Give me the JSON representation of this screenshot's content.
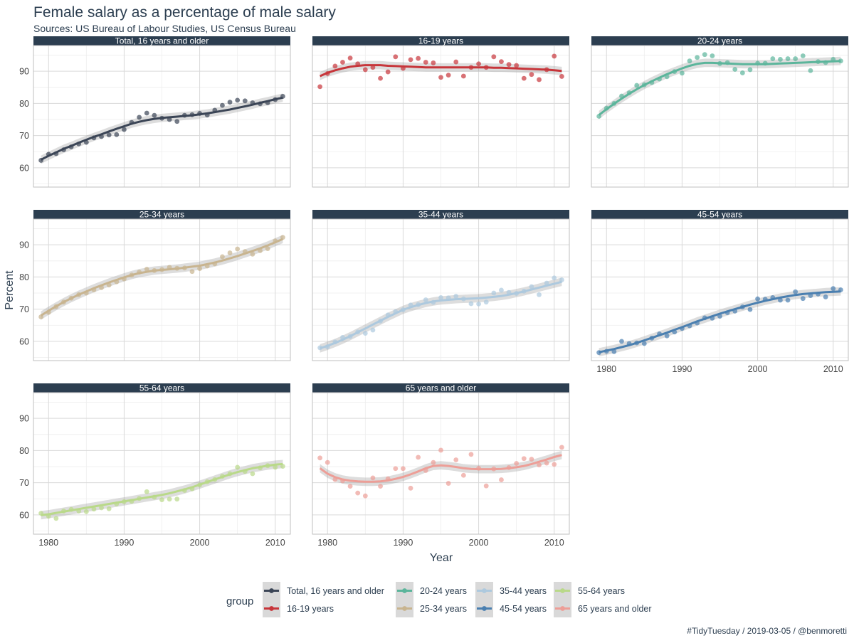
{
  "title": "Female salary as a percentage of male salary",
  "subtitle": "Sources: US Bureau of Labour Studies, US Census Bureau",
  "caption": "#TidyTuesday / 2019-03-05 / @benmoretti",
  "chart_data": {
    "type": "scatter",
    "facet": "group",
    "xlabel": "Year",
    "ylabel": "Percent",
    "xlim": [
      1978,
      2012
    ],
    "ylim": [
      54,
      98
    ],
    "x_ticks": [
      1980,
      1990,
      2000,
      2010
    ],
    "y_ticks": [
      60,
      70,
      80,
      90
    ],
    "grid": true,
    "smooth": "loess trend line with confidence band",
    "legend": {
      "title": "group",
      "position": "bottom",
      "entries": [
        "Total, 16 years and older",
        "16-19 years",
        "20-24 years",
        "25-34 years",
        "35-44 years",
        "45-54 years",
        "55-64 years",
        "65 years and older"
      ]
    },
    "x": [
      1979,
      1980,
      1981,
      1982,
      1983,
      1984,
      1985,
      1986,
      1987,
      1988,
      1989,
      1990,
      1991,
      1992,
      1993,
      1994,
      1995,
      1996,
      1997,
      1998,
      1999,
      2000,
      2001,
      2002,
      2003,
      2004,
      2005,
      2006,
      2007,
      2008,
      2009,
      2010,
      2011
    ],
    "series": [
      {
        "name": "Total, 16 years and older",
        "color": "#3b4556",
        "values": [
          62.3,
          64.2,
          64.4,
          65.6,
          66.5,
          67.4,
          67.9,
          69.3,
          69.7,
          70.2,
          70.3,
          71.9,
          74.1,
          75.7,
          77.0,
          76.3,
          75.4,
          75.0,
          74.4,
          76.3,
          76.5,
          76.9,
          76.4,
          77.9,
          79.4,
          80.4,
          81.0,
          80.8,
          80.2,
          79.9,
          80.2,
          81.2,
          82.2
        ],
        "trend": [
          62.5,
          63.7,
          64.8,
          65.9,
          66.8,
          67.8,
          68.7,
          69.6,
          70.4,
          71.3,
          72.1,
          72.9,
          73.7,
          74.3,
          74.8,
          75.2,
          75.5,
          75.7,
          75.9,
          76.1,
          76.3,
          76.6,
          76.9,
          77.3,
          77.7,
          78.1,
          78.6,
          79.1,
          79.6,
          80.2,
          80.7,
          81.3,
          81.8
        ]
      },
      {
        "name": "16-19 years",
        "color": "#c7353a",
        "values": [
          85.2,
          89.3,
          91.6,
          92.8,
          94.1,
          92.3,
          90.5,
          91.2,
          87.8,
          89.8,
          94.5,
          90.9,
          93.6,
          94.0,
          92.8,
          92.6,
          88.1,
          88.8,
          92.9,
          88.5,
          91.2,
          92.3,
          91.2,
          94.5,
          93.0,
          92.1,
          91.8,
          87.8,
          89.0,
          87.4,
          90.5,
          94.7,
          88.4
        ],
        "trend": [
          88.5,
          89.5,
          90.3,
          90.9,
          91.4,
          91.7,
          91.9,
          91.9,
          91.9,
          91.7,
          91.6,
          91.5,
          91.4,
          91.3,
          91.2,
          91.2,
          91.2,
          91.2,
          91.2,
          91.2,
          91.2,
          91.2,
          91.2,
          91.1,
          91.1,
          91.0,
          90.9,
          90.8,
          90.7,
          90.6,
          90.5,
          90.3,
          90.1
        ]
      },
      {
        "name": "20-24 years",
        "color": "#5bb59b",
        "values": [
          76.0,
          78.5,
          80.0,
          82.3,
          83.3,
          85.6,
          85.8,
          86.5,
          87.6,
          88.3,
          89.9,
          89.4,
          93.2,
          94.3,
          95.2,
          94.8,
          92.4,
          92.7,
          90.6,
          89.5,
          90.5,
          92.5,
          92.5,
          93.9,
          93.7,
          93.9,
          93.9,
          94.8,
          90.2,
          93.0,
          92.7,
          93.7,
          93.2
        ],
        "trend": [
          76.4,
          78.2,
          79.9,
          81.5,
          83.0,
          84.4,
          85.7,
          86.9,
          88.0,
          89.1,
          90.0,
          90.9,
          91.7,
          92.3,
          92.6,
          92.6,
          92.5,
          92.4,
          92.3,
          92.2,
          92.2,
          92.2,
          92.2,
          92.3,
          92.4,
          92.5,
          92.6,
          92.7,
          92.8,
          92.9,
          93.0,
          93.1,
          93.2
        ]
      },
      {
        "name": "25-34 years",
        "color": "#c8b48f",
        "values": [
          67.6,
          69.0,
          70.8,
          72.2,
          73.4,
          74.5,
          75.0,
          76.0,
          76.7,
          77.5,
          78.5,
          79.4,
          80.6,
          81.5,
          82.4,
          82.0,
          82.3,
          83.0,
          82.7,
          82.8,
          81.7,
          82.6,
          83.4,
          84.1,
          86.3,
          87.5,
          88.7,
          87.9,
          87.1,
          88.2,
          88.8,
          91.2,
          92.3
        ],
        "trend": [
          68.0,
          69.5,
          70.9,
          72.2,
          73.4,
          74.5,
          75.5,
          76.5,
          77.4,
          78.3,
          79.1,
          79.9,
          80.6,
          81.2,
          81.6,
          82.0,
          82.2,
          82.4,
          82.6,
          82.9,
          83.2,
          83.5,
          84.0,
          84.5,
          85.1,
          85.8,
          86.5,
          87.3,
          88.1,
          88.9,
          89.8,
          90.8,
          91.8
        ]
      },
      {
        "name": "35-44 years",
        "color": "#adc9de",
        "values": [
          58.0,
          58.3,
          59.8,
          61.2,
          61.5,
          62.9,
          62.5,
          63.5,
          66.3,
          68.2,
          69.2,
          69.8,
          71.3,
          71.4,
          72.9,
          72.1,
          73.6,
          73.5,
          74.0,
          73.2,
          71.7,
          71.6,
          72.2,
          75.0,
          75.9,
          75.2,
          74.9,
          75.6,
          77.0,
          74.5,
          78.1,
          79.7,
          79.1
        ],
        "trend": [
          57.8,
          58.6,
          59.5,
          60.5,
          61.6,
          62.8,
          64.0,
          65.2,
          66.4,
          67.6,
          68.7,
          69.8,
          70.6,
          71.3,
          71.9,
          72.4,
          72.7,
          72.9,
          73.1,
          73.2,
          73.3,
          73.4,
          73.6,
          73.8,
          74.1,
          74.5,
          75.0,
          75.5,
          76.1,
          76.7,
          77.3,
          77.9,
          78.5
        ]
      },
      {
        "name": "45-54 years",
        "color": "#4a7fb0",
        "values": [
          56.5,
          56.9,
          56.8,
          60.0,
          59.3,
          59.5,
          59.3,
          61.0,
          62.3,
          61.7,
          62.9,
          64.0,
          64.8,
          65.7,
          67.3,
          67.2,
          67.8,
          68.9,
          69.4,
          70.7,
          69.9,
          73.2,
          73.1,
          73.6,
          72.8,
          72.8,
          75.4,
          73.3,
          74.2,
          74.7,
          73.8,
          76.4,
          76.0
        ],
        "trend": [
          56.6,
          57.1,
          57.6,
          58.2,
          58.8,
          59.5,
          60.3,
          61.1,
          61.9,
          62.7,
          63.6,
          64.4,
          65.3,
          66.2,
          67.0,
          67.8,
          68.6,
          69.3,
          70.0,
          70.7,
          71.4,
          72.0,
          72.6,
          73.1,
          73.6,
          74.0,
          74.4,
          74.7,
          74.9,
          75.1,
          75.3,
          75.4,
          75.5
        ]
      },
      {
        "name": "55-64 years",
        "color": "#b9d989",
        "values": [
          60.5,
          59.6,
          58.9,
          61.2,
          61.7,
          61.2,
          61.0,
          61.8,
          62.2,
          61.9,
          63.4,
          64.1,
          64.2,
          65.1,
          67.2,
          65.5,
          64.7,
          64.9,
          64.9,
          67.6,
          68.1,
          69.3,
          70.3,
          71.0,
          72.0,
          72.8,
          74.8,
          73.5,
          72.8,
          74.6,
          75.3,
          74.8,
          75.1
        ],
        "trend": [
          59.9,
          60.2,
          60.6,
          61.0,
          61.4,
          61.8,
          62.2,
          62.6,
          63.0,
          63.4,
          63.8,
          64.2,
          64.6,
          65.0,
          65.4,
          65.8,
          66.2,
          66.7,
          67.3,
          67.9,
          68.6,
          69.4,
          70.2,
          71.0,
          71.8,
          72.6,
          73.3,
          73.9,
          74.5,
          74.9,
          75.3,
          75.6,
          75.8
        ]
      },
      {
        "name": "65 years and older",
        "color": "#ed9e97",
        "values": [
          77.7,
          76.3,
          71.0,
          70.6,
          68.9,
          66.8,
          65.9,
          71.5,
          68.9,
          71.2,
          74.4,
          74.4,
          68.3,
          77.9,
          73.8,
          76.3,
          80.1,
          69.8,
          77.1,
          72.3,
          78.8,
          74.5,
          69.0,
          74.3,
          70.9,
          74.7,
          76.0,
          77.5,
          77.3,
          75.5,
          76.1,
          75.7,
          81.0
        ],
        "trend": [
          74.5,
          72.8,
          71.7,
          71.0,
          70.6,
          70.4,
          70.3,
          70.3,
          70.4,
          70.7,
          71.2,
          71.8,
          72.6,
          73.5,
          74.5,
          75.2,
          75.4,
          75.2,
          74.9,
          74.5,
          74.3,
          74.2,
          74.2,
          74.2,
          74.3,
          74.5,
          74.8,
          75.2,
          75.8,
          76.5,
          77.2,
          78.0,
          78.6
        ]
      }
    ]
  }
}
